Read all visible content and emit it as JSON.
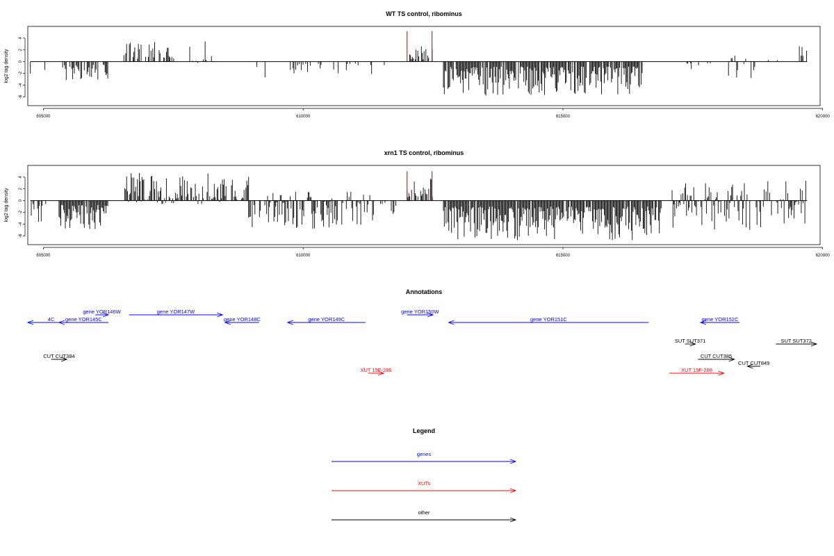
{
  "chart_data": [
    {
      "type": "bar",
      "title": "WT TS control, ribominus",
      "ylabel": "log2 tag density",
      "xlim": [
        604700,
        619950
      ],
      "ylim": [
        -7.5,
        6
      ],
      "x_ticks": [
        605000,
        610000,
        615000,
        620000
      ],
      "x_tick_labels": [
        "605000",
        "610000",
        "615000",
        "620000"
      ],
      "y_ticks": [
        -6,
        -4,
        -2,
        0,
        2,
        4
      ],
      "y_tick_labels": [
        "-6",
        "-4",
        "-2",
        "0",
        "2",
        "4"
      ],
      "baseline_x": [
        604750,
        619700
      ],
      "tracks_segments": [
        {
          "x": [
            604750,
            605150
          ],
          "min": -2.3,
          "max": 0.0,
          "density": 0.06
        },
        {
          "x": [
            605300,
            606250
          ],
          "min": -3.4,
          "max": 0.0,
          "density": 0.55
        },
        {
          "x": [
            606550,
            607600
          ],
          "min": 0.0,
          "max": 3.4,
          "density": 0.55
        },
        {
          "x": [
            607800,
            608500
          ],
          "min": -0.8,
          "max": 3.9,
          "density": 0.25
        },
        {
          "x": [
            608900,
            609300
          ],
          "min": -3.0,
          "max": 0.0,
          "density": 0.15
        },
        {
          "x": [
            609650,
            610350
          ],
          "min": -2.3,
          "max": 0.0,
          "density": 0.35
        },
        {
          "x": [
            610500,
            611100
          ],
          "min": -2.2,
          "max": 0.0,
          "density": 0.2
        },
        {
          "x": [
            611300,
            611600
          ],
          "min": -3.8,
          "max": 0.0,
          "density": 0.3
        },
        {
          "x": [
            612050,
            612500
          ],
          "min": 0.0,
          "max": 2.6,
          "density": 0.5
        },
        {
          "x": [
            612700,
            616550
          ],
          "min": -5.8,
          "max": 0.0,
          "density": 0.85
        },
        {
          "x": [
            617350,
            617850
          ],
          "min": -2.0,
          "max": 0.0,
          "density": 0.25
        },
        {
          "x": [
            618100,
            618700
          ],
          "min": -3.2,
          "max": 1.2,
          "density": 0.3
        },
        {
          "x": [
            618900,
            619400
          ],
          "min": 0.0,
          "max": 1.5,
          "density": 0.1
        },
        {
          "x": [
            619550,
            619700
          ],
          "min": 0.0,
          "max": 3.1,
          "density": 0.5
        }
      ],
      "highlights": [
        {
          "x": 612000,
          "value": 5.2,
          "color": "#ff0000"
        },
        {
          "x": 612480,
          "value": 5.2,
          "color": "#ff0000"
        }
      ]
    },
    {
      "type": "bar",
      "title": "xrn1 TS control, ribominus",
      "ylabel": "log2 tag density",
      "xlim": [
        604700,
        619950
      ],
      "ylim": [
        -7.5,
        6
      ],
      "x_ticks": [
        605000,
        610000,
        615000,
        620000
      ],
      "x_tick_labels": [
        "605000",
        "610000",
        "615000",
        "620000"
      ],
      "y_ticks": [
        -6,
        -4,
        -2,
        0,
        2,
        4
      ],
      "y_tick_labels": [
        "-6",
        "-4",
        "-2",
        "0",
        "2",
        "4"
      ],
      "baseline_x": [
        604750,
        619700
      ],
      "tracks_segments": [
        {
          "x": [
            604750,
            605100
          ],
          "min": -3.8,
          "max": 0.0,
          "density": 0.3
        },
        {
          "x": [
            605300,
            606250
          ],
          "min": -5.0,
          "max": 0.0,
          "density": 0.95
        },
        {
          "x": [
            606550,
            608950
          ],
          "min": -0.7,
          "max": 4.8,
          "density": 0.85
        },
        {
          "x": [
            608950,
            610500
          ],
          "min": -4.8,
          "max": 1.8,
          "density": 0.8
        },
        {
          "x": [
            610500,
            611400
          ],
          "min": -4.5,
          "max": 2.2,
          "density": 0.7
        },
        {
          "x": [
            611400,
            611800
          ],
          "min": -2.5,
          "max": 0.0,
          "density": 0.2
        },
        {
          "x": [
            612000,
            612500
          ],
          "min": 0.0,
          "max": 4.0,
          "density": 0.75
        },
        {
          "x": [
            612700,
            616900
          ],
          "min": -6.8,
          "max": 0.0,
          "density": 0.95
        },
        {
          "x": [
            617100,
            619700
          ],
          "min": -5.5,
          "max": 3.5,
          "density": 0.75
        }
      ],
      "highlights": [
        {
          "x": 612000,
          "value": 5.0,
          "color": "#ff0000"
        },
        {
          "x": 612480,
          "value": 5.0,
          "color": "#ff0000"
        }
      ]
    }
  ],
  "annotations": {
    "title": "Annotations",
    "items": [
      {
        "label": "4C",
        "start": 604700,
        "end": 605600,
        "dir": "rev",
        "row": 1,
        "color": "#0000ff"
      },
      {
        "label": "gene YOR146W",
        "start": 606000,
        "end": 606250,
        "dir": "fwd",
        "row": 0,
        "color": "#0000ff"
      },
      {
        "label": "gene YOR145C",
        "start": 605300,
        "end": 606250,
        "dir": "rev",
        "row": 1,
        "color": "#0000ff"
      },
      {
        "label": "gene YOR147W",
        "start": 606650,
        "end": 608450,
        "dir": "fwd",
        "row": 0,
        "color": "#0000ff"
      },
      {
        "label": "gene YOR148C",
        "start": 608500,
        "end": 609150,
        "dir": "rev",
        "row": 1,
        "color": "#0000ff"
      },
      {
        "label": "gene YOR149C",
        "start": 609700,
        "end": 611200,
        "dir": "rev",
        "row": 1,
        "color": "#0000ff"
      },
      {
        "label": "gene YOR150W",
        "start": 612000,
        "end": 612500,
        "dir": "fwd",
        "row": 0,
        "color": "#0000ff"
      },
      {
        "label": "gene YOR151C",
        "start": 612800,
        "end": 616650,
        "dir": "rev",
        "row": 1,
        "color": "#0000ff"
      },
      {
        "label": "gene YOR152C",
        "start": 617650,
        "end": 618400,
        "dir": "rev",
        "row": 1,
        "color": "#0000ff"
      },
      {
        "label": "SUT SUT371",
        "start": 617350,
        "end": 617550,
        "dir": "fwd",
        "row": 3,
        "color": "#000000"
      },
      {
        "label": "SUT SUT372",
        "start": 619100,
        "end": 619900,
        "dir": "fwd",
        "row": 3,
        "color": "#000000"
      },
      {
        "label": "CUT CUT384",
        "start": 605150,
        "end": 605450,
        "dir": "fwd",
        "row": 4,
        "color": "#000000"
      },
      {
        "label": "CUT CUT385",
        "start": 617600,
        "end": 618300,
        "dir": "fwd",
        "row": 4,
        "color": "#000000"
      },
      {
        "label": "CUT CUT849",
        "start": 618550,
        "end": 618800,
        "dir": "rev",
        "row": 5,
        "color": "#000000"
      },
      {
        "label": "XUT 15F-286",
        "start": 611250,
        "end": 611550,
        "dir": "fwd",
        "row": 6,
        "color": "#ff0000"
      },
      {
        "label": "XUT 15F-288",
        "start": 617050,
        "end": 618100,
        "dir": "fwd",
        "row": 6,
        "color": "#ff0000"
      }
    ]
  },
  "legend": {
    "title": "Legend",
    "items": [
      {
        "label": "genes",
        "color": "#0000ff"
      },
      {
        "label": "XUTs",
        "color": "#ff0000"
      },
      {
        "label": "other",
        "color": "#000000"
      }
    ]
  }
}
